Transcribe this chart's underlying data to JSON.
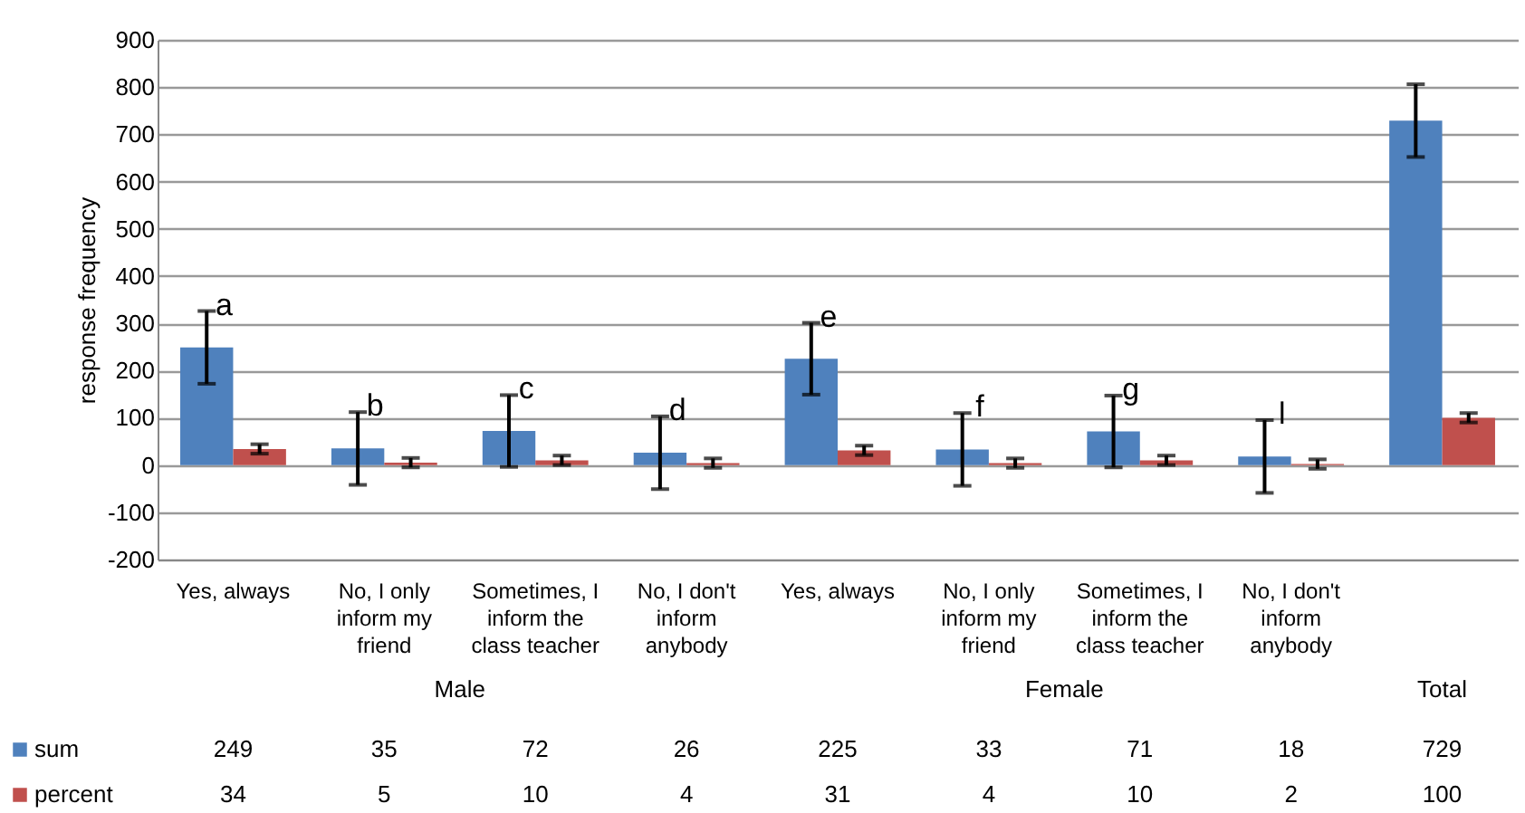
{
  "chart_data": {
    "type": "bar",
    "ylabel": "response frequency",
    "categories": [
      "Yes, always",
      "No, I only inform my friend",
      "Sometimes, I inform the class teacher",
      "No, I don't inform anybody",
      "Yes, always",
      "No, I only inform my friend",
      "Sometimes, I inform the class teacher",
      "No, I don't inform anybody",
      null
    ],
    "series": [
      {
        "name": "sum",
        "color": "#4f81bd",
        "values": [
          249,
          35,
          72,
          26,
          225,
          33,
          71,
          18,
          729
        ],
        "errors": [
          77,
          77,
          76,
          77,
          76,
          77,
          76,
          77,
          77
        ]
      },
      {
        "name": "percent",
        "color": "#c0504d",
        "values": [
          34,
          5,
          10,
          4,
          31,
          4,
          10,
          2,
          100
        ],
        "errors": [
          10,
          10,
          10,
          10,
          10,
          10,
          10,
          10,
          10
        ]
      }
    ],
    "ylim": [
      -200,
      900
    ],
    "yticks": [
      -200,
      -100,
      0,
      100,
      200,
      300,
      400,
      500,
      600,
      700,
      800,
      900
    ],
    "grid": "y",
    "legend": "bottom",
    "data_labels": true,
    "annotations": [
      "a",
      "b",
      "c",
      "d",
      "e",
      "f",
      "g",
      "l",
      "Male",
      "Female",
      "Total"
    ]
  }
}
